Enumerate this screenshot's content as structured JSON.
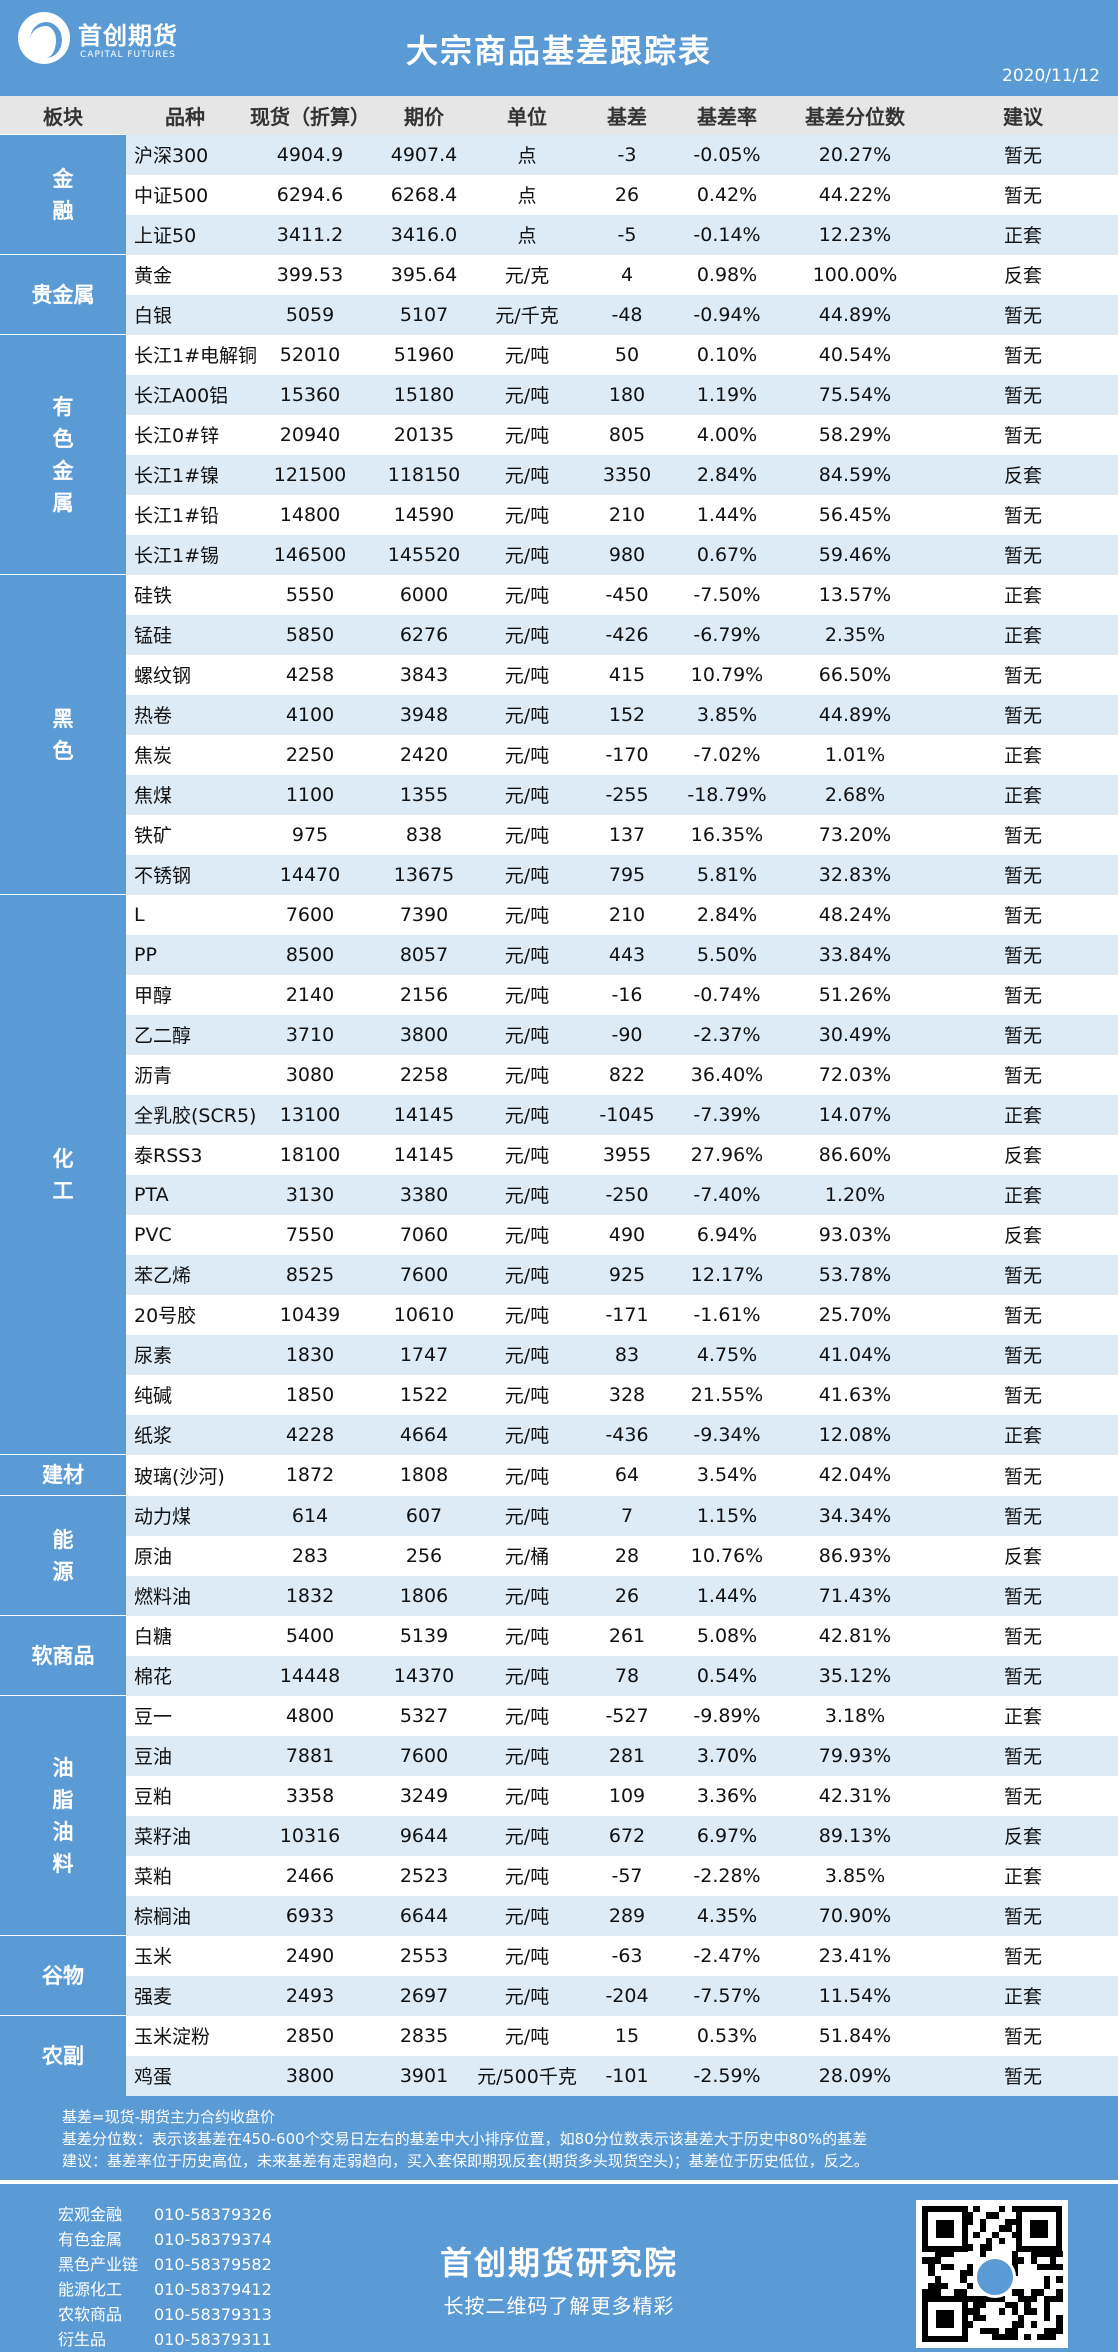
{
  "header": {
    "logo_cn": "首创期货",
    "logo_en": "CAPITAL FUTURES",
    "title": "大宗商品基差跟踪表",
    "date": "2020/11/12"
  },
  "columns": [
    "板块",
    "品种",
    "现货（折算）",
    "期价",
    "单位",
    "基差",
    "基差率",
    "基差分位数",
    "建议"
  ],
  "sectors": [
    {
      "name": "金融",
      "rows": [
        [
          "沪深300",
          "4904.9",
          "4907.4",
          "点",
          "-3",
          "-0.05%",
          "20.27%",
          "暂无"
        ],
        [
          "中证500",
          "6294.6",
          "6268.4",
          "点",
          "26",
          "0.42%",
          "44.22%",
          "暂无"
        ],
        [
          "上证50",
          "3411.2",
          "3416.0",
          "点",
          "-5",
          "-0.14%",
          "12.23%",
          "正套"
        ]
      ]
    },
    {
      "name": "贵金属",
      "rows": [
        [
          "黄金",
          "399.53",
          "395.64",
          "元/克",
          "4",
          "0.98%",
          "100.00%",
          "反套"
        ],
        [
          "白银",
          "5059",
          "5107",
          "元/千克",
          "-48",
          "-0.94%",
          "44.89%",
          "暂无"
        ]
      ]
    },
    {
      "name": "有色金属",
      "rows": [
        [
          "长江1#电解铜",
          "52010",
          "51960",
          "元/吨",
          "50",
          "0.10%",
          "40.54%",
          "暂无"
        ],
        [
          "长江A00铝",
          "15360",
          "15180",
          "元/吨",
          "180",
          "1.19%",
          "75.54%",
          "暂无"
        ],
        [
          "长江0#锌",
          "20940",
          "20135",
          "元/吨",
          "805",
          "4.00%",
          "58.29%",
          "暂无"
        ],
        [
          "长江1#镍",
          "121500",
          "118150",
          "元/吨",
          "3350",
          "2.84%",
          "84.59%",
          "反套"
        ],
        [
          "长江1#铅",
          "14800",
          "14590",
          "元/吨",
          "210",
          "1.44%",
          "56.45%",
          "暂无"
        ],
        [
          "长江1#锡",
          "146500",
          "145520",
          "元/吨",
          "980",
          "0.67%",
          "59.46%",
          "暂无"
        ]
      ]
    },
    {
      "name": "黑色",
      "rows": [
        [
          "硅铁",
          "5550",
          "6000",
          "元/吨",
          "-450",
          "-7.50%",
          "13.57%",
          "正套"
        ],
        [
          "锰硅",
          "5850",
          "6276",
          "元/吨",
          "-426",
          "-6.79%",
          "2.35%",
          "正套"
        ],
        [
          "螺纹钢",
          "4258",
          "3843",
          "元/吨",
          "415",
          "10.79%",
          "66.50%",
          "暂无"
        ],
        [
          "热卷",
          "4100",
          "3948",
          "元/吨",
          "152",
          "3.85%",
          "44.89%",
          "暂无"
        ],
        [
          "焦炭",
          "2250",
          "2420",
          "元/吨",
          "-170",
          "-7.02%",
          "1.01%",
          "正套"
        ],
        [
          "焦煤",
          "1100",
          "1355",
          "元/吨",
          "-255",
          "-18.79%",
          "2.68%",
          "正套"
        ],
        [
          "铁矿",
          "975",
          "838",
          "元/吨",
          "137",
          "16.35%",
          "73.20%",
          "暂无"
        ],
        [
          "不锈钢",
          "14470",
          "13675",
          "元/吨",
          "795",
          "5.81%",
          "32.83%",
          "暂无"
        ]
      ]
    },
    {
      "name": "化工",
      "rows": [
        [
          "L",
          "7600",
          "7390",
          "元/吨",
          "210",
          "2.84%",
          "48.24%",
          "暂无"
        ],
        [
          "PP",
          "8500",
          "8057",
          "元/吨",
          "443",
          "5.50%",
          "33.84%",
          "暂无"
        ],
        [
          "甲醇",
          "2140",
          "2156",
          "元/吨",
          "-16",
          "-0.74%",
          "51.26%",
          "暂无"
        ],
        [
          "乙二醇",
          "3710",
          "3800",
          "元/吨",
          "-90",
          "-2.37%",
          "30.49%",
          "暂无"
        ],
        [
          "沥青",
          "3080",
          "2258",
          "元/吨",
          "822",
          "36.40%",
          "72.03%",
          "暂无"
        ],
        [
          "全乳胶(SCR5)",
          "13100",
          "14145",
          "元/吨",
          "-1045",
          "-7.39%",
          "14.07%",
          "正套"
        ],
        [
          "泰RSS3",
          "18100",
          "14145",
          "元/吨",
          "3955",
          "27.96%",
          "86.60%",
          "反套"
        ],
        [
          "PTA",
          "3130",
          "3380",
          "元/吨",
          "-250",
          "-7.40%",
          "1.20%",
          "正套"
        ],
        [
          "PVC",
          "7550",
          "7060",
          "元/吨",
          "490",
          "6.94%",
          "93.03%",
          "反套"
        ],
        [
          "苯乙烯",
          "8525",
          "7600",
          "元/吨",
          "925",
          "12.17%",
          "53.78%",
          "暂无"
        ],
        [
          "20号胶",
          "10439",
          "10610",
          "元/吨",
          "-171",
          "-1.61%",
          "25.70%",
          "暂无"
        ],
        [
          "尿素",
          "1830",
          "1747",
          "元/吨",
          "83",
          "4.75%",
          "41.04%",
          "暂无"
        ],
        [
          "纯碱",
          "1850",
          "1522",
          "元/吨",
          "328",
          "21.55%",
          "41.63%",
          "暂无"
        ],
        [
          "纸浆",
          "4228",
          "4664",
          "元/吨",
          "-436",
          "-9.34%",
          "12.08%",
          "正套"
        ]
      ]
    },
    {
      "name": "建材",
      "rows": [
        [
          "玻璃(沙河)",
          "1872",
          "1808",
          "元/吨",
          "64",
          "3.54%",
          "42.04%",
          "暂无"
        ]
      ]
    },
    {
      "name": "能源",
      "rows": [
        [
          "动力煤",
          "614",
          "607",
          "元/吨",
          "7",
          "1.15%",
          "34.34%",
          "暂无"
        ],
        [
          "原油",
          "283",
          "256",
          "元/桶",
          "28",
          "10.76%",
          "86.93%",
          "反套"
        ],
        [
          "燃料油",
          "1832",
          "1806",
          "元/吨",
          "26",
          "1.44%",
          "71.43%",
          "暂无"
        ]
      ]
    },
    {
      "name": "软商品",
      "rows": [
        [
          "白糖",
          "5400",
          "5139",
          "元/吨",
          "261",
          "5.08%",
          "42.81%",
          "暂无"
        ],
        [
          "棉花",
          "14448",
          "14370",
          "元/吨",
          "78",
          "0.54%",
          "35.12%",
          "暂无"
        ]
      ]
    },
    {
      "name": "油脂油料",
      "rows": [
        [
          "豆一",
          "4800",
          "5327",
          "元/吨",
          "-527",
          "-9.89%",
          "3.18%",
          "正套"
        ],
        [
          "豆油",
          "7881",
          "7600",
          "元/吨",
          "281",
          "3.70%",
          "79.93%",
          "暂无"
        ],
        [
          "豆粕",
          "3358",
          "3249",
          "元/吨",
          "109",
          "3.36%",
          "42.31%",
          "暂无"
        ],
        [
          "菜籽油",
          "10316",
          "9644",
          "元/吨",
          "672",
          "6.97%",
          "89.13%",
          "反套"
        ],
        [
          "菜粕",
          "2466",
          "2523",
          "元/吨",
          "-57",
          "-2.28%",
          "3.85%",
          "正套"
        ],
        [
          "棕榈油",
          "6933",
          "6644",
          "元/吨",
          "289",
          "4.35%",
          "70.90%",
          "暂无"
        ]
      ]
    },
    {
      "name": "谷物",
      "rows": [
        [
          "玉米",
          "2490",
          "2553",
          "元/吨",
          "-63",
          "-2.47%",
          "23.41%",
          "暂无"
        ],
        [
          "强麦",
          "2493",
          "2697",
          "元/吨",
          "-204",
          "-7.57%",
          "11.54%",
          "正套"
        ]
      ]
    },
    {
      "name": "农副",
      "rows": [
        [
          "玉米淀粉",
          "2850",
          "2835",
          "元/吨",
          "15",
          "0.53%",
          "51.84%",
          "暂无"
        ],
        [
          "鸡蛋",
          "3800",
          "3901",
          "元/500千克",
          "-101",
          "-2.59%",
          "28.09%",
          "暂无"
        ]
      ]
    }
  ],
  "notes": [
    "基差=现货-期货主力合约收盘价",
    "基差分位数：表示该基差在450-600个交易日左右的基差中大小排序位置，如80分位数表示该基差大于历史中80%的基差",
    "建议：基差率位于历史高位，未来基差有走弱趋向，买入套保即期现反套(期货多头现货空头)；基差位于历史低位，反之。"
  ],
  "footer": {
    "contacts": [
      {
        "label": "宏观金融",
        "phone": "010-58379326"
      },
      {
        "label": "有色金属",
        "phone": "010-58379374"
      },
      {
        "label": "黑色产业链",
        "phone": "010-58379582"
      },
      {
        "label": "能源化工",
        "phone": "010-58379412"
      },
      {
        "label": "农软商品",
        "phone": "010-58379313"
      },
      {
        "label": "衍生品",
        "phone": "010-58379311"
      }
    ],
    "institute": "首创期货研究院",
    "subtitle": "长按二维码了解更多精彩",
    "qr_icon": "qr-code-icon"
  },
  "colors": {
    "accent": "#5b9bd5",
    "stripe": "#ddebf7",
    "header_bg": "#e6e6e6"
  }
}
